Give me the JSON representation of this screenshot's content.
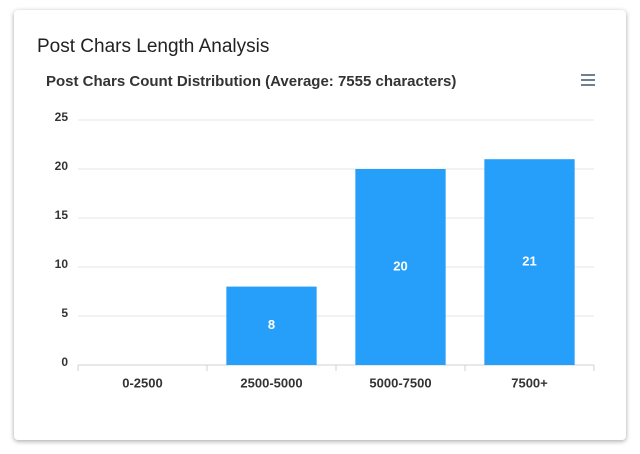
{
  "page": {
    "heading": "Post Chars Length Analysis"
  },
  "chart_data": {
    "type": "bar",
    "title": "Post Chars Count Distribution (Average: 7555 characters)",
    "categories": [
      "0-2500",
      "2500-5000",
      "5000-7500",
      "7500+"
    ],
    "values": [
      0,
      8,
      20,
      21
    ],
    "color": "#269ffb",
    "ylim": [
      0,
      25
    ],
    "yticks": [
      0,
      5,
      10,
      15,
      20,
      25
    ],
    "grid": true
  }
}
